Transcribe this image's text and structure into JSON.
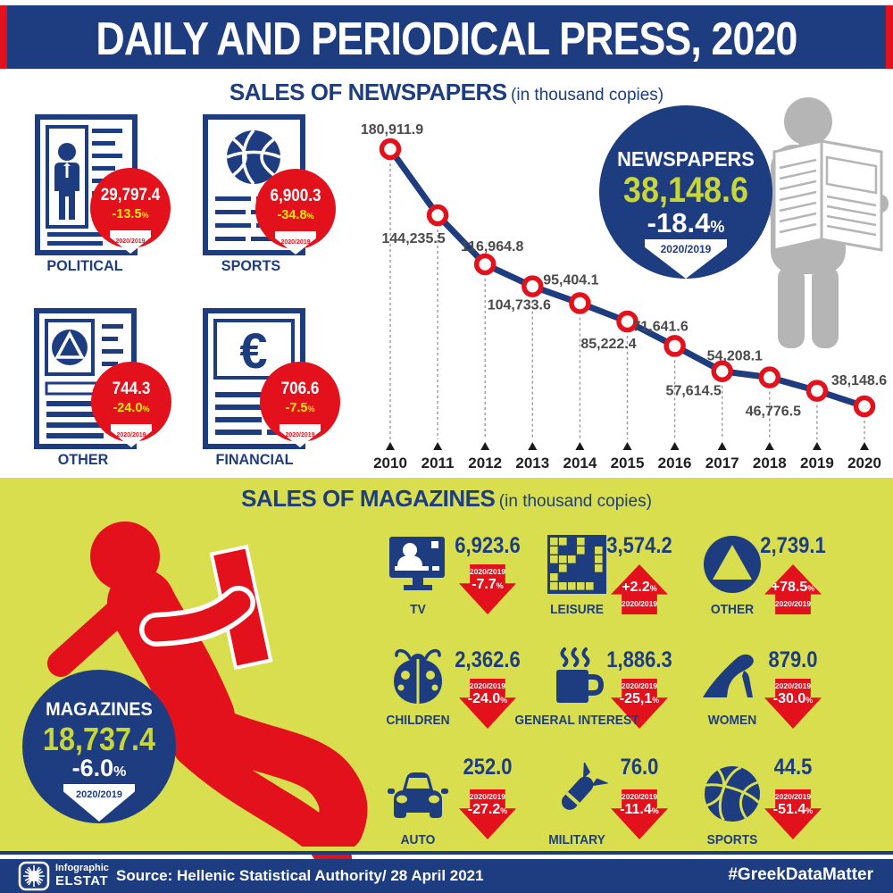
{
  "header": {
    "title": "DAILY AND PERIODICAL PRESS, 2020"
  },
  "percent_sign": "%",
  "newspapers": {
    "heading": "SALES OF NEWSPAPERS",
    "subheading": "(in thousand copies)",
    "summary": {
      "label": "NEWSPAPERS",
      "value": "38,148.6",
      "change": "-18.4",
      "period": "2020/2019"
    },
    "categories": [
      {
        "label": "POLITICAL",
        "value": "29,797.4",
        "change": "-13.5",
        "period": "2020/2019",
        "icon": "person-newspaper-icon"
      },
      {
        "label": "SPORTS",
        "value": "6,900.3",
        "change": "-34.8",
        "period": "2020/2019",
        "icon": "basketball-newspaper-icon"
      },
      {
        "label": "OTHER",
        "value": "744.3",
        "change": "-24.0",
        "period": "2020/2019",
        "icon": "triangle-circle-newspaper-icon"
      },
      {
        "label": "FINANCIAL",
        "value": "706.6",
        "change": "-7.5",
        "period": "2020/2019",
        "icon": "euro-newspaper-icon"
      }
    ]
  },
  "chart_data": {
    "type": "line",
    "title": "SALES OF NEWSPAPERS (in thousand copies)",
    "x": [
      "2010",
      "2011",
      "2012",
      "2013",
      "2014",
      "2015",
      "2016",
      "2017",
      "2018",
      "2019",
      "2020"
    ],
    "values": [
      180911.9,
      144235.5,
      116964.8,
      104733.6,
      95404.1,
      85222.4,
      71641.6,
      57614.5,
      54208.1,
      46776.5,
      38148.6
    ],
    "point_labels": [
      "180,911.9",
      "144,235.5",
      "116,964.8",
      "104,733.6",
      "95,404.1",
      "85,222.4",
      "71,641.6",
      "57,614.5",
      "54,208.1",
      "46,776.5",
      "38,148.6"
    ],
    "ylim": [
      35000,
      185000
    ],
    "grid": false,
    "legend": false,
    "line_color": "#1e3d80",
    "marker_color": "#e2111c"
  },
  "magazines": {
    "heading": "SALES OF MAGAZINES",
    "subheading": "(in thousand copies)",
    "summary": {
      "label": "MAGAZINES",
      "value": "18,737.4",
      "change": "-6.0",
      "period": "2020/2019"
    },
    "items": [
      {
        "label": "TV",
        "value": "6,923.6",
        "change": "-7.7",
        "direction": "down",
        "period": "2020/2019",
        "icon": "tv-icon"
      },
      {
        "label": "LEISURE",
        "value": "3,574.2",
        "change": "+2.2",
        "direction": "up",
        "period": "2020/2019",
        "icon": "crossword-icon"
      },
      {
        "label": "OTHER",
        "value": "2,739.1",
        "change": "+78.5",
        "direction": "up",
        "period": "2020/2019",
        "icon": "triangle-circle-icon"
      },
      {
        "label": "CHILDREN",
        "value": "2,362.6",
        "change": "-24.0",
        "direction": "down",
        "period": "2020/2019",
        "icon": "ladybug-icon"
      },
      {
        "label": "GENERAL INTEREST",
        "value": "1,886.3",
        "change": "-25,1",
        "direction": "down",
        "period": "2020/2019",
        "icon": "coffee-cup-icon"
      },
      {
        "label": "WOMEN",
        "value": "879.0",
        "change": "-30.0",
        "direction": "down",
        "period": "2020/2019",
        "icon": "high-heel-icon"
      },
      {
        "label": "AUTO",
        "value": "252.0",
        "change": "-27.2",
        "direction": "down",
        "period": "2020/2019",
        "icon": "car-icon"
      },
      {
        "label": "MILITARY",
        "value": "76.0",
        "change": "-11.4",
        "direction": "down",
        "period": "2020/2019",
        "icon": "bomb-icon"
      },
      {
        "label": "SPORTS",
        "value": "44.5",
        "change": "-51.4",
        "direction": "down",
        "period": "2020/2019",
        "icon": "basketball-icon"
      }
    ]
  },
  "footer": {
    "logo_top": "Infographic",
    "logo_bottom": "ELSTAT",
    "source": "Source: Hellenic Statistical Authority/ 28 April 2021",
    "hashtag": "#GreekDataMatter"
  },
  "colors": {
    "blue": "#1e3d80",
    "red": "#e2111c",
    "background_yellow": "#d9de4f",
    "number_green": "#c9d63a",
    "percent_yellow": "#fae800",
    "gray": "#b5b5b5"
  }
}
